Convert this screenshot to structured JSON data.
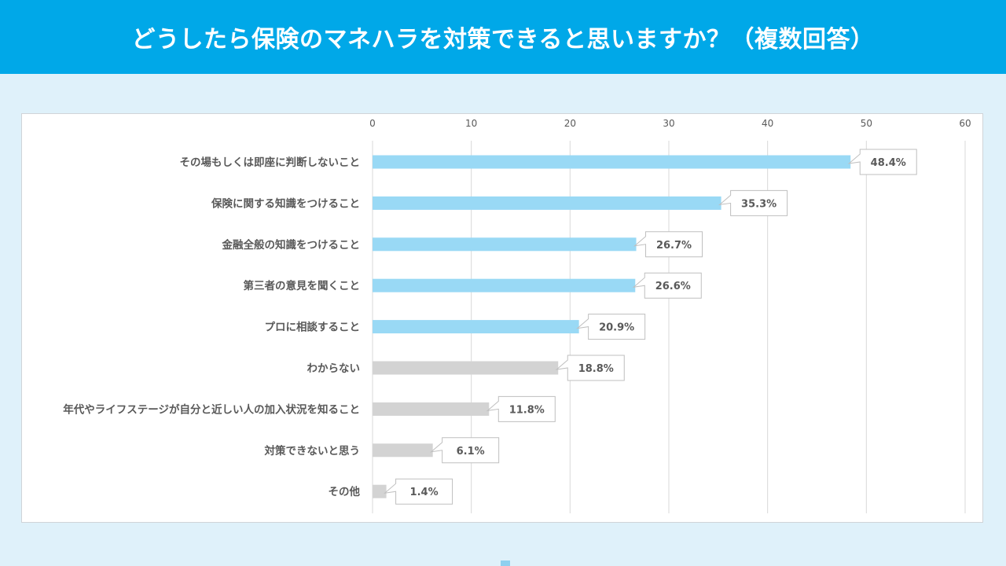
{
  "header": {
    "title": "どうしたら保険のマネハラを対策できると思いますか？（複数回答）"
  },
  "colors": {
    "header_bg": "#00a8e8",
    "page_bg": "#dff1fa",
    "highlight_bar": "#99d9f5",
    "other_bar": "#d3d3d3",
    "text": "#595959"
  },
  "chart_data": {
    "type": "bar",
    "orientation": "horizontal",
    "title": "どうしたら保険のマネハラを対策できると思いますか？（複数回答）",
    "xlim": [
      0,
      60
    ],
    "xticks": [
      0,
      10,
      20,
      30,
      40,
      50,
      60
    ],
    "grid": true,
    "categories": [
      "その場もしくは即座に判断しないこと",
      "保険に関する知識をつけること",
      "金融全般の知識をつけること",
      "第三者の意見を聞くこと",
      "プロに相談すること",
      "わからない",
      "年代やライフステージが自分と近しい人の加入状況を知ること",
      "対策できないと思う",
      "その他"
    ],
    "values": [
      48.4,
      35.3,
      26.7,
      26.6,
      20.9,
      18.8,
      11.8,
      6.1,
      1.4
    ],
    "data_labels": [
      "48.4%",
      "35.3%",
      "26.7%",
      "26.6%",
      "20.9%",
      "18.8%",
      "11.8%",
      "6.1%",
      "1.4%"
    ],
    "highlighted": [
      true,
      true,
      true,
      true,
      true,
      false,
      false,
      false,
      false
    ]
  }
}
